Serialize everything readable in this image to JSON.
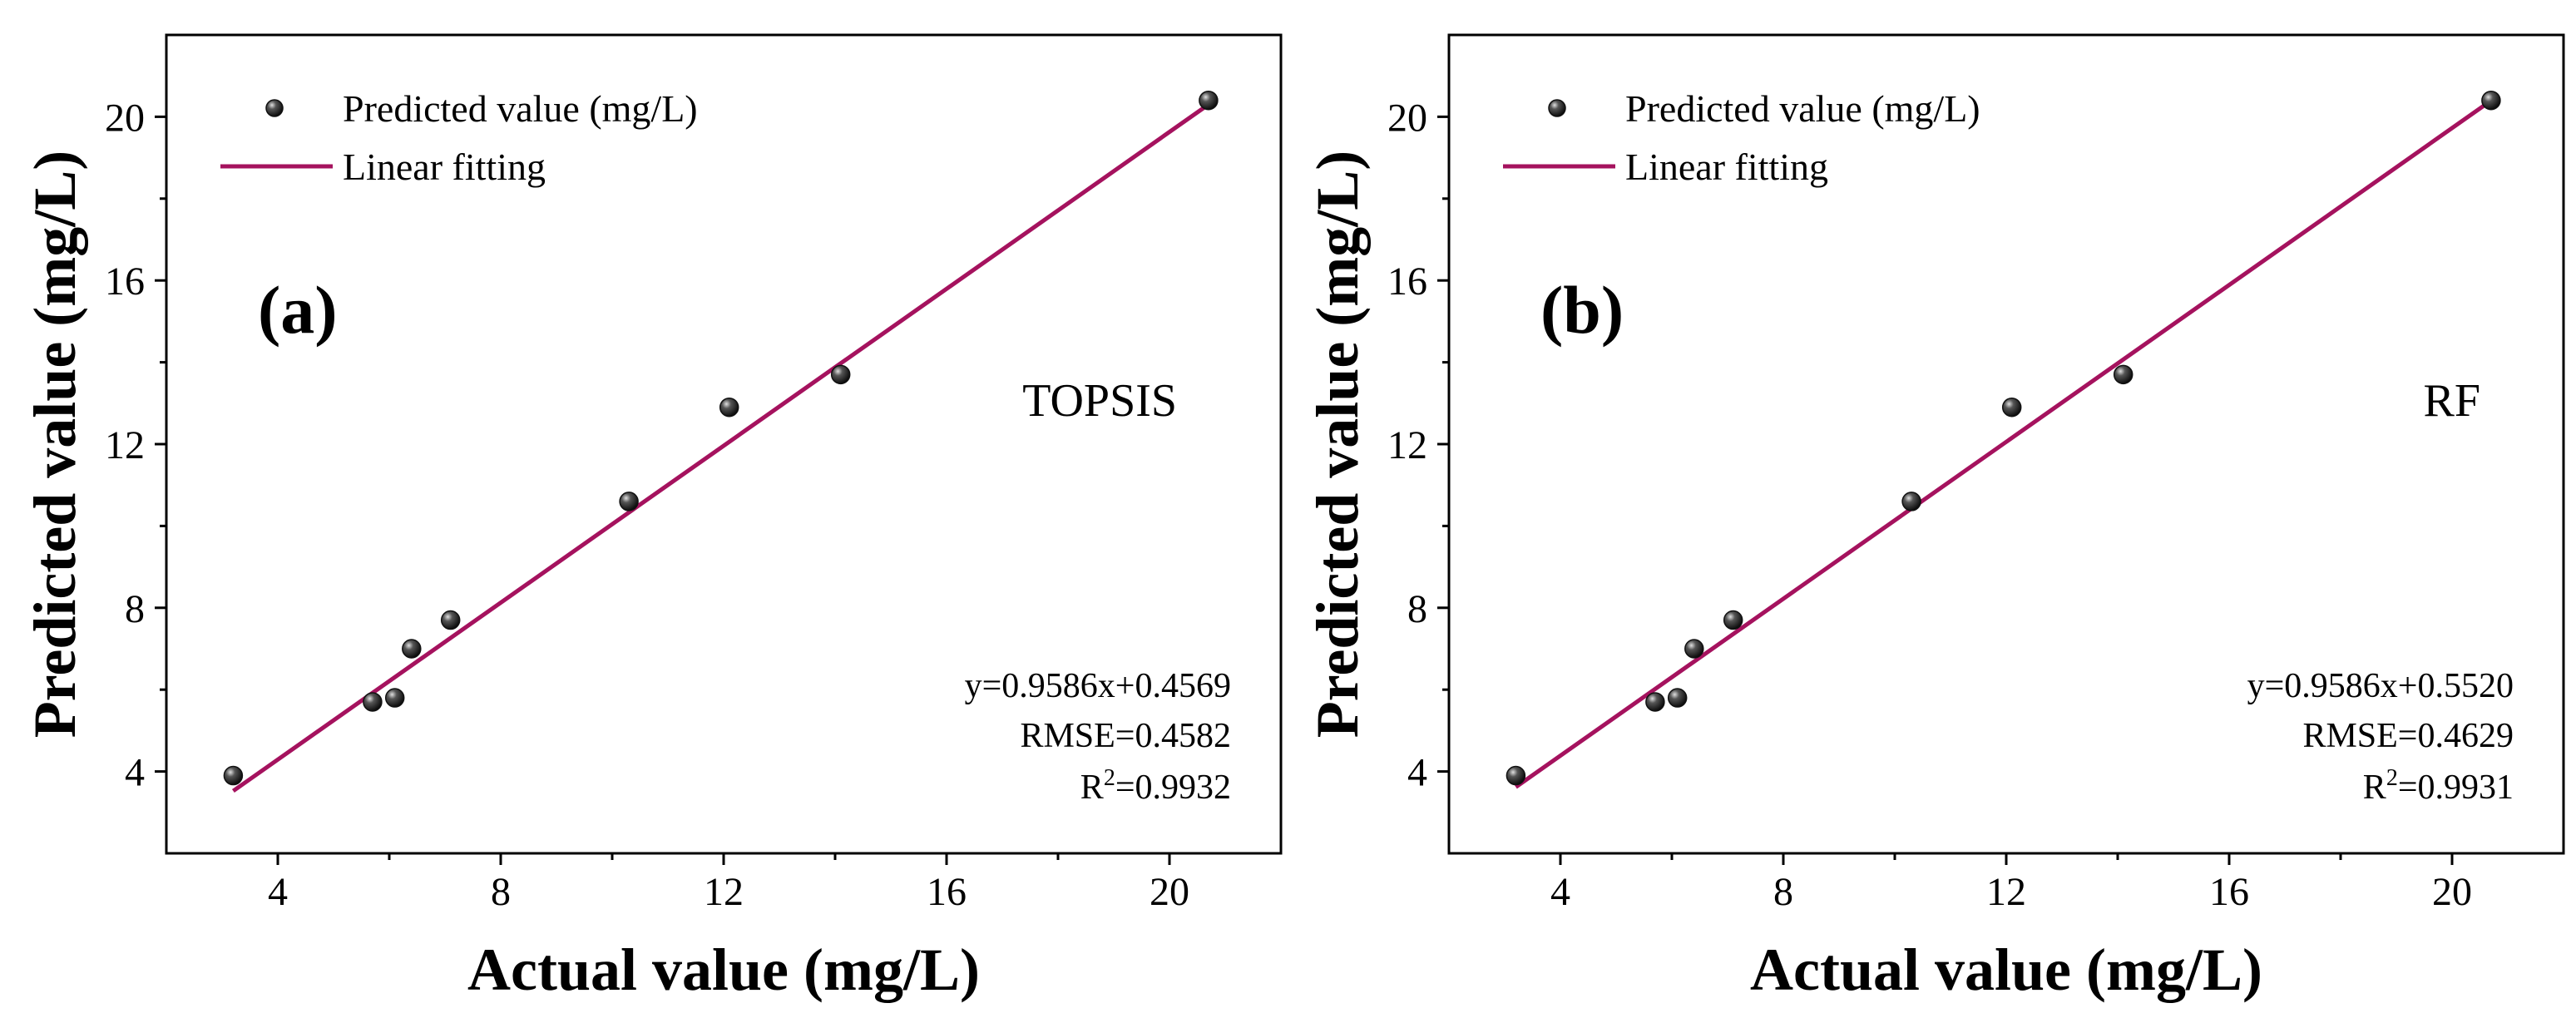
{
  "chart_data": [
    {
      "type": "scatter",
      "panel_label": "(a)",
      "method": "TOPSIS",
      "xlabel": "Actual value (mg/L)",
      "ylabel": "Predicted value (mg/L)",
      "xlim": [
        2,
        22
      ],
      "ylim": [
        2,
        22
      ],
      "xticks": [
        4,
        8,
        12,
        16,
        20
      ],
      "yticks": [
        4,
        8,
        12,
        16,
        20
      ],
      "legend": {
        "position": "top-left",
        "scatter_label": "Predicted value (mg/L)",
        "line_label": "Linear fitting"
      },
      "points": [
        {
          "x": 3.2,
          "y": 3.9
        },
        {
          "x": 5.7,
          "y": 5.7
        },
        {
          "x": 6.1,
          "y": 5.8
        },
        {
          "x": 6.4,
          "y": 7.0
        },
        {
          "x": 7.1,
          "y": 7.7
        },
        {
          "x": 10.3,
          "y": 10.6
        },
        {
          "x": 12.1,
          "y": 12.9
        },
        {
          "x": 14.1,
          "y": 13.7
        },
        {
          "x": 20.7,
          "y": 20.4
        }
      ],
      "fit": {
        "slope": 0.9586,
        "intercept": 0.4569,
        "x_range": [
          3.2,
          20.7
        ]
      },
      "stats": {
        "equation": "y=0.9586x+0.4569",
        "rmse": "RMSE=0.4582",
        "r2_prefix": "R",
        "r2_sup": "2",
        "r2_value": "=0.9932"
      }
    },
    {
      "type": "scatter",
      "panel_label": "(b)",
      "method": "RF",
      "xlabel": "Actual value (mg/L)",
      "ylabel": "Predicted value (mg/L)",
      "xlim": [
        2,
        22
      ],
      "ylim": [
        2,
        22
      ],
      "xticks": [
        4,
        8,
        12,
        16,
        20
      ],
      "yticks": [
        4,
        8,
        12,
        16,
        20
      ],
      "legend": {
        "position": "top-left",
        "scatter_label": "Predicted value (mg/L)",
        "line_label": "Linear fitting"
      },
      "points": [
        {
          "x": 3.2,
          "y": 3.9
        },
        {
          "x": 5.7,
          "y": 5.7
        },
        {
          "x": 6.1,
          "y": 5.8
        },
        {
          "x": 6.4,
          "y": 7.0
        },
        {
          "x": 7.1,
          "y": 7.7
        },
        {
          "x": 10.3,
          "y": 10.6
        },
        {
          "x": 12.1,
          "y": 12.9
        },
        {
          "x": 14.1,
          "y": 13.7
        },
        {
          "x": 20.7,
          "y": 20.4
        }
      ],
      "fit": {
        "slope": 0.9586,
        "intercept": 0.552,
        "x_range": [
          3.2,
          20.7
        ]
      },
      "stats": {
        "equation": "y=0.9586x+0.5520",
        "rmse": "RMSE=0.4629",
        "r2_prefix": "R",
        "r2_sup": "2",
        "r2_value": "=0.9931"
      }
    }
  ],
  "colors": {
    "fit_line": "#a5125e",
    "marker_fill": "#111111",
    "marker_highlight": "#d8d8d8"
  }
}
